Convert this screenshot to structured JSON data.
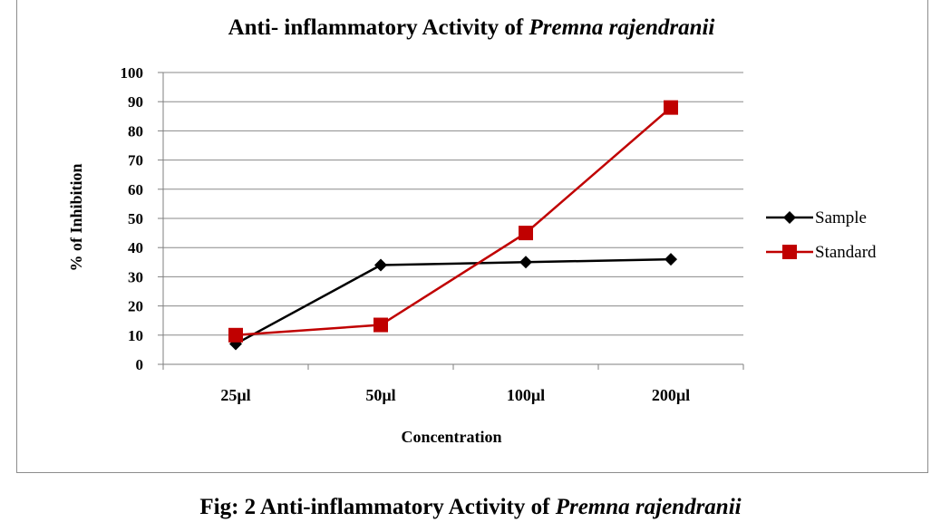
{
  "chart_data": {
    "type": "line",
    "title_prefix": "Anti- inflammatory Activity of ",
    "title_italic": "Premna rajendranii",
    "xlabel": "Concentration",
    "ylabel": "% of Inhibition",
    "categories": [
      "25µl",
      "50µl",
      "100µl",
      "200µl"
    ],
    "ylim": [
      0,
      100
    ],
    "yticks": [
      0,
      10,
      20,
      30,
      40,
      50,
      60,
      70,
      80,
      90,
      100
    ],
    "grid": true,
    "legend_position": "right",
    "series": [
      {
        "name": "Sample",
        "values": [
          7,
          34,
          35,
          36
        ],
        "color": "#000000",
        "marker": "diamond"
      },
      {
        "name": "Standard",
        "values": [
          10,
          13.5,
          45,
          88
        ],
        "color": "#c00000",
        "marker": "square"
      }
    ]
  },
  "caption": {
    "prefix": "Fig: 2 Anti-inflammatory  Activity of ",
    "italic": "Premna rajendranii"
  }
}
